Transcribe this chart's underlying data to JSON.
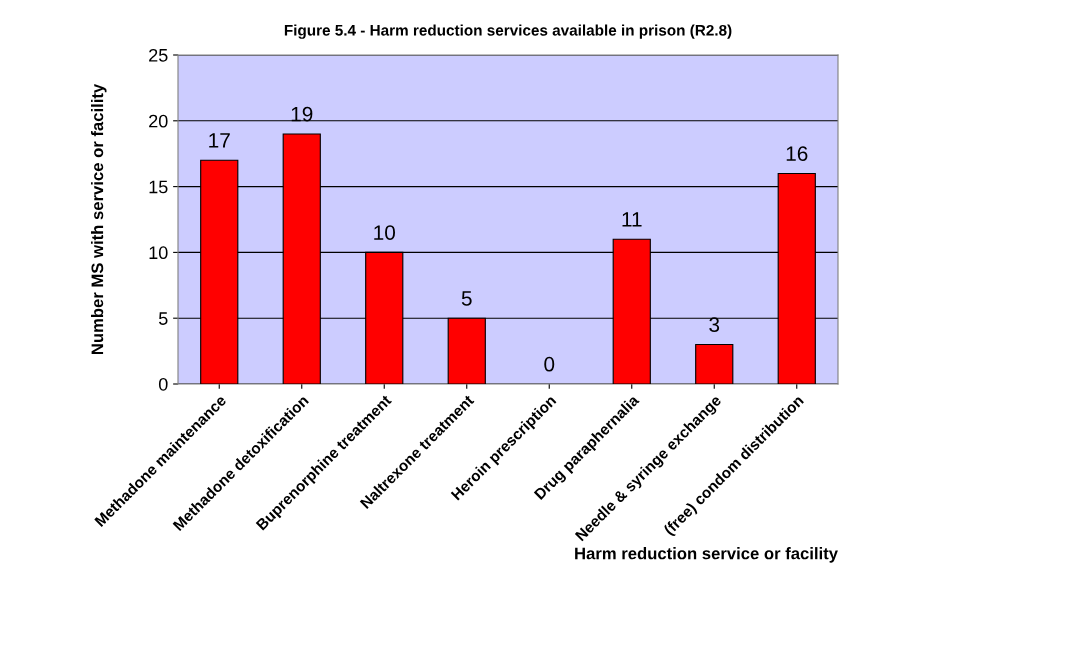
{
  "chart_data": {
    "type": "bar",
    "title": "Figure 5.4 - Harm reduction services available in prison (R2.8)",
    "xlabel": "Harm reduction service or facility",
    "ylabel": "Number MS with service or facility",
    "categories": [
      "Methadone maintenance",
      "Methadone detoxification",
      "Buprenorphine treatment",
      "Naltrexone treatment",
      "Heroin prescription",
      "Drug paraphernalia",
      "Needle & syringe exchange",
      "(free) condom distribution"
    ],
    "values": [
      17,
      19,
      10,
      5,
      0,
      11,
      3,
      16
    ],
    "color": "#ff0000",
    "ylim": [
      0,
      25
    ],
    "yticks": [
      0,
      5,
      10,
      15,
      20,
      25
    ],
    "grid": "y",
    "data_labels": true
  }
}
